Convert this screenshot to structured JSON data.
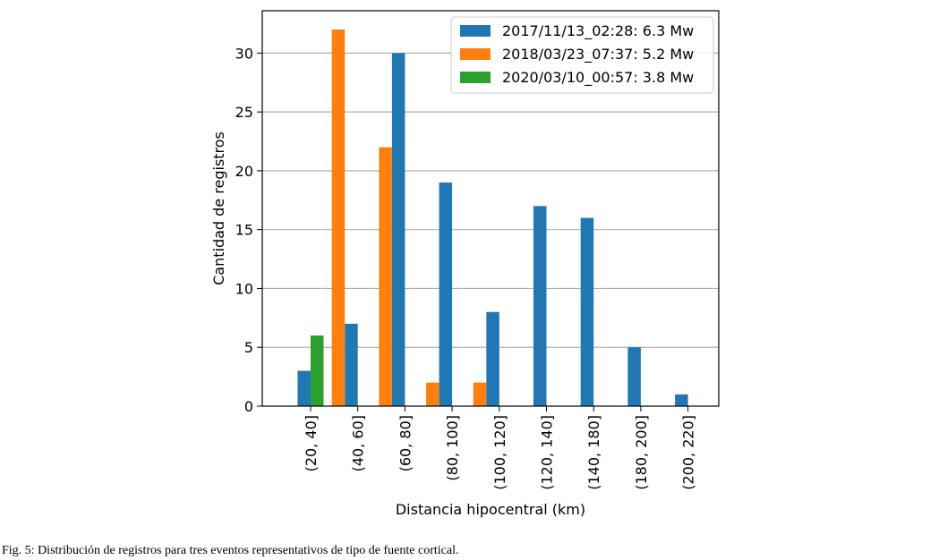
{
  "caption": "Fig. 5: Distribución de registros para tres eventos representativos de tipo de fuente cortical.",
  "chart_data": {
    "type": "bar",
    "title": "",
    "xlabel": "Distancia hipocentral (km)",
    "ylabel": "Cantidad de registros",
    "categories": [
      "(20, 40]",
      "(40, 60]",
      "(60, 80]",
      "(80, 100]",
      "(100, 120]",
      "(120, 140]",
      "(140, 180]",
      "(180, 200]",
      "(200, 220]"
    ],
    "ylim": [
      0,
      33.6
    ],
    "yticks": [
      0,
      5,
      10,
      15,
      20,
      25,
      30
    ],
    "grid": "y",
    "legend_position": "top-right",
    "series": [
      {
        "name": "2017/11/13_02:28: 6.3 Mw",
        "color": "#1f77b4",
        "values": [
          3,
          7,
          30,
          19,
          8,
          17,
          16,
          5,
          1
        ]
      },
      {
        "name": "2018/03/23_07:37: 5.2 Mw",
        "color": "#ff7f0e",
        "values": [
          0,
          32,
          22,
          2,
          2,
          0,
          0,
          0,
          0
        ]
      },
      {
        "name": "2020/03/10_00:57: 3.8 Mw",
        "color": "#2ca02c",
        "values": [
          6,
          0,
          0,
          0,
          0,
          0,
          0,
          0,
          0
        ]
      }
    ]
  }
}
